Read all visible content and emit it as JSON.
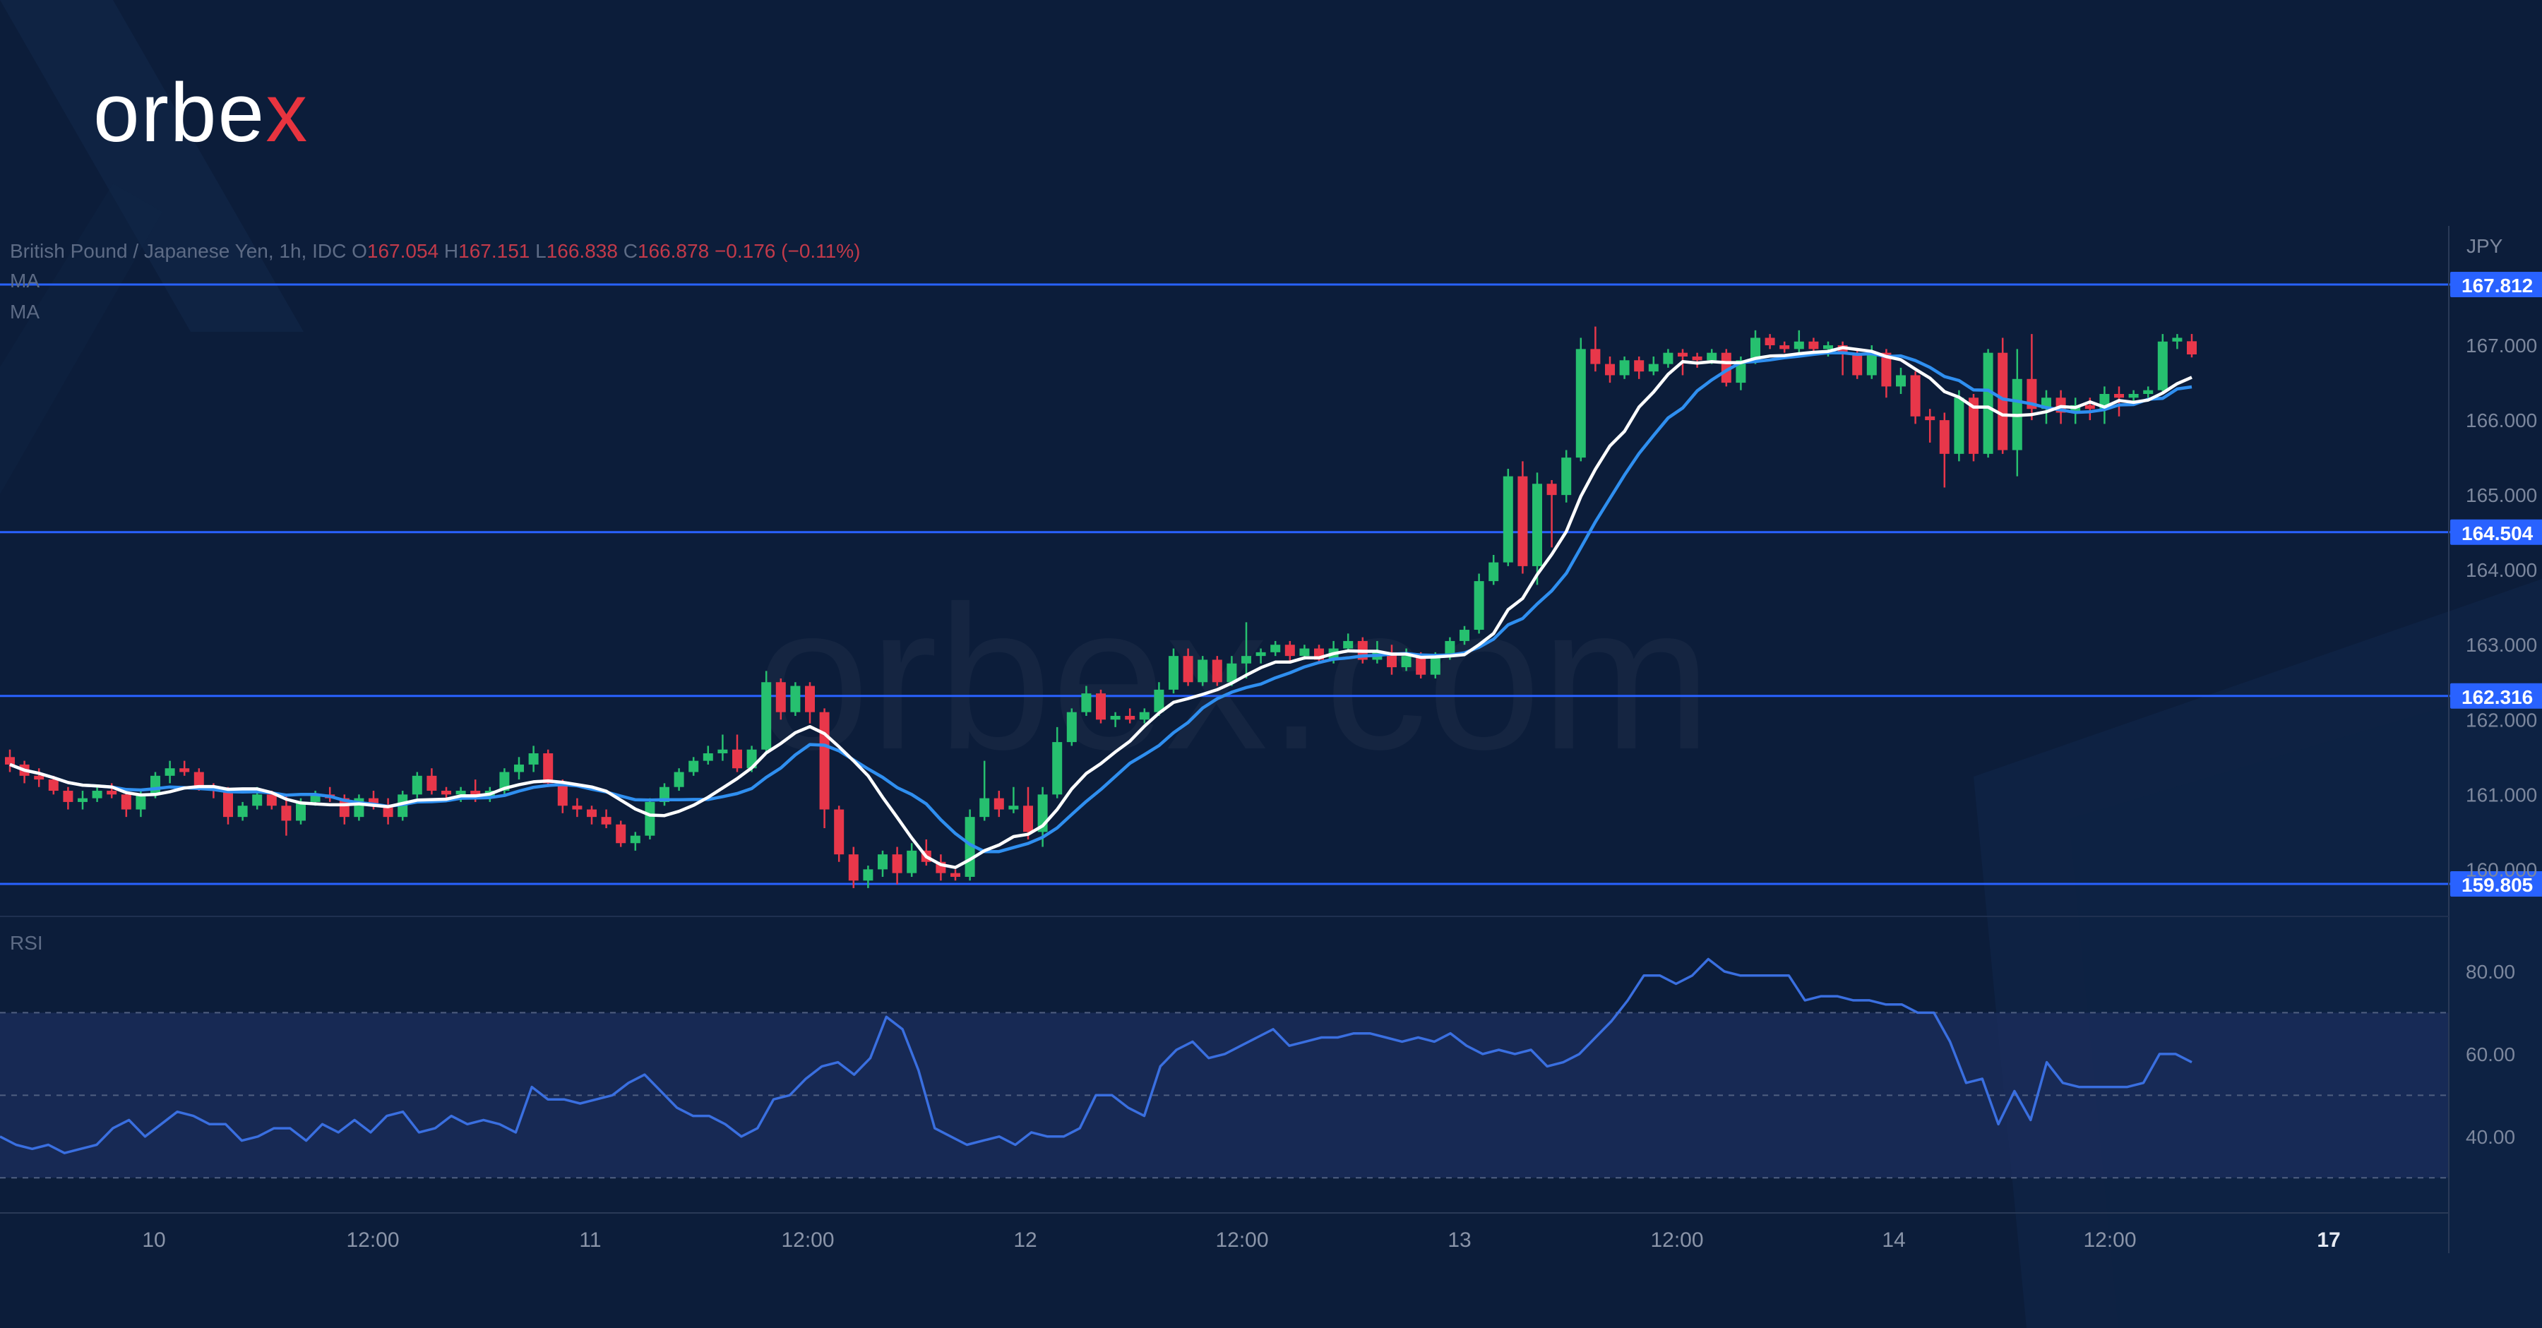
{
  "brand": {
    "name_main": "orbe",
    "name_accent": "x",
    "watermark": "orbex.com"
  },
  "chart_header": {
    "symbol": "British Pound / Japanese Yen, 1h, IDC",
    "open_label": "O",
    "open": "167.054",
    "high_label": "H",
    "high": "167.151",
    "low_label": "L",
    "low": "166.838",
    "close_label": "C",
    "close": "166.878",
    "change": "−0.176 (−0.11%)",
    "ma_labels": [
      "MA",
      "MA"
    ],
    "rsi_label": "RSI"
  },
  "colors": {
    "background": "#0c1d3a",
    "up": "#26c06f",
    "down": "#e8374a",
    "ma_fast": "#ffffff",
    "ma_slow": "#2f8ff0",
    "level_line": "#2962ff",
    "rsi_line": "#3a6fe0",
    "rsi_band": "#1a2c59"
  },
  "chart_data": {
    "type": "candlestick",
    "currency_label": "JPY",
    "ylim": [
      159.4,
      168.5
    ],
    "price_ticks": [
      "167.000",
      "166.000",
      "165.000",
      "164.000",
      "163.000",
      "162.000",
      "161.000",
      "160.000"
    ],
    "levels": [
      "167.812",
      "164.504",
      "162.316",
      "159.805"
    ],
    "x_ticks": [
      "10",
      "12:00",
      "11",
      "12:00",
      "12",
      "12:00",
      "13",
      "12:00",
      "14",
      "12:00",
      "17"
    ],
    "bold_x_tick": "17",
    "candles": [
      [
        161.5,
        161.6,
        161.3,
        161.4
      ],
      [
        161.4,
        161.45,
        161.15,
        161.25
      ],
      [
        161.25,
        161.35,
        161.1,
        161.2
      ],
      [
        161.2,
        161.25,
        161.0,
        161.05
      ],
      [
        161.05,
        161.1,
        160.8,
        160.9
      ],
      [
        160.9,
        161.05,
        160.8,
        160.95
      ],
      [
        160.95,
        161.1,
        160.9,
        161.05
      ],
      [
        161.05,
        161.15,
        160.95,
        161.0
      ],
      [
        161.0,
        161.05,
        160.7,
        160.8
      ],
      [
        160.8,
        161.05,
        160.7,
        161.0
      ],
      [
        161.0,
        161.3,
        160.95,
        161.25
      ],
      [
        161.25,
        161.45,
        161.15,
        161.35
      ],
      [
        161.35,
        161.45,
        161.25,
        161.3
      ],
      [
        161.3,
        161.35,
        161.05,
        161.1
      ],
      [
        161.1,
        161.15,
        160.95,
        161.05
      ],
      [
        161.05,
        161.1,
        160.6,
        160.7
      ],
      [
        160.7,
        160.9,
        160.65,
        160.85
      ],
      [
        160.85,
        161.1,
        160.8,
        161.0
      ],
      [
        161.0,
        161.05,
        160.8,
        160.85
      ],
      [
        160.85,
        161.0,
        160.45,
        160.65
      ],
      [
        160.65,
        160.95,
        160.6,
        160.9
      ],
      [
        160.9,
        161.05,
        160.85,
        161.0
      ],
      [
        161.0,
        161.1,
        160.9,
        160.95
      ],
      [
        160.95,
        161.0,
        160.6,
        160.7
      ],
      [
        160.7,
        161.0,
        160.65,
        160.95
      ],
      [
        160.95,
        161.05,
        160.8,
        160.85
      ],
      [
        160.85,
        160.95,
        160.6,
        160.7
      ],
      [
        160.7,
        161.05,
        160.65,
        161.0
      ],
      [
        161.0,
        161.3,
        160.95,
        161.25
      ],
      [
        161.25,
        161.35,
        161.0,
        161.05
      ],
      [
        161.05,
        161.1,
        160.95,
        161.0
      ],
      [
        161.0,
        161.1,
        160.9,
        161.05
      ],
      [
        161.05,
        161.2,
        160.9,
        160.95
      ],
      [
        160.95,
        161.1,
        160.9,
        161.05
      ],
      [
        161.05,
        161.35,
        161.0,
        161.3
      ],
      [
        161.3,
        161.5,
        161.2,
        161.4
      ],
      [
        161.4,
        161.65,
        161.3,
        161.55
      ],
      [
        161.55,
        161.6,
        161.1,
        161.15
      ],
      [
        161.15,
        161.2,
        160.75,
        160.85
      ],
      [
        160.85,
        160.95,
        160.7,
        160.8
      ],
      [
        160.8,
        160.85,
        160.6,
        160.7
      ],
      [
        160.7,
        160.8,
        160.55,
        160.6
      ],
      [
        160.6,
        160.65,
        160.3,
        160.35
      ],
      [
        160.35,
        160.5,
        160.25,
        160.45
      ],
      [
        160.45,
        160.95,
        160.4,
        160.9
      ],
      [
        160.9,
        161.15,
        160.85,
        161.1
      ],
      [
        161.1,
        161.35,
        161.05,
        161.3
      ],
      [
        161.3,
        161.5,
        161.25,
        161.45
      ],
      [
        161.45,
        161.65,
        161.4,
        161.55
      ],
      [
        161.55,
        161.8,
        161.45,
        161.6
      ],
      [
        161.6,
        161.8,
        161.3,
        161.35
      ],
      [
        161.35,
        161.65,
        161.3,
        161.6
      ],
      [
        161.6,
        162.65,
        161.55,
        162.5
      ],
      [
        162.5,
        162.55,
        162.0,
        162.1
      ],
      [
        162.1,
        162.5,
        162.05,
        162.45
      ],
      [
        162.45,
        162.5,
        161.95,
        162.1
      ],
      [
        162.1,
        162.15,
        160.55,
        160.8
      ],
      [
        160.8,
        160.85,
        160.1,
        160.2
      ],
      [
        160.2,
        160.3,
        159.75,
        159.85
      ],
      [
        159.85,
        160.05,
        159.75,
        160.0
      ],
      [
        160.0,
        160.25,
        159.9,
        160.2
      ],
      [
        160.2,
        160.3,
        159.8,
        159.95
      ],
      [
        159.95,
        160.35,
        159.9,
        160.25
      ],
      [
        160.25,
        160.4,
        160.05,
        160.1
      ],
      [
        160.1,
        160.2,
        159.85,
        159.95
      ],
      [
        159.95,
        160.0,
        159.85,
        159.9
      ],
      [
        159.9,
        160.8,
        159.85,
        160.7
      ],
      [
        160.7,
        161.45,
        160.65,
        160.95
      ],
      [
        160.95,
        161.05,
        160.7,
        160.8
      ],
      [
        160.8,
        161.1,
        160.75,
        160.85
      ],
      [
        160.85,
        161.1,
        160.4,
        160.5
      ],
      [
        160.5,
        161.1,
        160.3,
        161.0
      ],
      [
        161.0,
        161.9,
        160.95,
        161.7
      ],
      [
        161.7,
        162.15,
        161.65,
        162.1
      ],
      [
        162.1,
        162.45,
        162.05,
        162.35
      ],
      [
        162.35,
        162.4,
        161.95,
        162.0
      ],
      [
        162.0,
        162.1,
        161.9,
        162.05
      ],
      [
        162.05,
        162.15,
        161.95,
        162.0
      ],
      [
        162.0,
        162.15,
        161.95,
        162.1
      ],
      [
        162.1,
        162.5,
        162.05,
        162.4
      ],
      [
        162.4,
        162.95,
        162.35,
        162.85
      ],
      [
        162.85,
        162.95,
        162.45,
        162.5
      ],
      [
        162.5,
        162.85,
        162.45,
        162.8
      ],
      [
        162.8,
        162.85,
        162.45,
        162.5
      ],
      [
        162.5,
        162.85,
        162.45,
        162.75
      ],
      [
        162.75,
        163.3,
        162.55,
        162.85
      ],
      [
        162.85,
        162.95,
        162.75,
        162.9
      ],
      [
        162.9,
        163.05,
        162.85,
        163.0
      ],
      [
        163.0,
        163.05,
        162.75,
        162.85
      ],
      [
        162.85,
        163.0,
        162.8,
        162.95
      ],
      [
        162.95,
        163.0,
        162.75,
        162.8
      ],
      [
        162.8,
        163.05,
        162.75,
        162.95
      ],
      [
        162.95,
        163.15,
        162.9,
        163.05
      ],
      [
        163.05,
        163.1,
        162.75,
        162.8
      ],
      [
        162.8,
        163.05,
        162.75,
        162.9
      ],
      [
        162.9,
        163.0,
        162.6,
        162.7
      ],
      [
        162.7,
        162.95,
        162.65,
        162.85
      ],
      [
        162.85,
        162.9,
        162.55,
        162.6
      ],
      [
        162.6,
        162.9,
        162.55,
        162.85
      ],
      [
        162.85,
        163.1,
        162.8,
        163.05
      ],
      [
        163.05,
        163.25,
        163.0,
        163.2
      ],
      [
        163.2,
        163.95,
        163.15,
        163.85
      ],
      [
        163.85,
        164.2,
        163.8,
        164.1
      ],
      [
        164.1,
        165.35,
        164.05,
        165.25
      ],
      [
        165.25,
        165.45,
        163.95,
        164.05
      ],
      [
        164.05,
        165.3,
        163.8,
        165.15
      ],
      [
        165.15,
        165.2,
        164.3,
        165.0
      ],
      [
        165.0,
        165.6,
        164.9,
        165.5
      ],
      [
        165.5,
        167.1,
        165.45,
        166.95
      ],
      [
        166.95,
        167.25,
        166.65,
        166.75
      ],
      [
        166.75,
        166.85,
        166.5,
        166.6
      ],
      [
        166.6,
        166.85,
        166.55,
        166.8
      ],
      [
        166.8,
        166.85,
        166.55,
        166.65
      ],
      [
        166.65,
        166.85,
        166.6,
        166.75
      ],
      [
        166.75,
        166.95,
        166.7,
        166.9
      ],
      [
        166.9,
        166.95,
        166.6,
        166.85
      ],
      [
        166.85,
        166.9,
        166.7,
        166.8
      ],
      [
        166.8,
        166.95,
        166.75,
        166.9
      ],
      [
        166.9,
        166.95,
        166.45,
        166.5
      ],
      [
        166.5,
        166.85,
        166.4,
        166.8
      ],
      [
        166.8,
        167.2,
        166.75,
        167.1
      ],
      [
        167.1,
        167.15,
        166.95,
        167.0
      ],
      [
        167.0,
        167.05,
        166.9,
        166.95
      ],
      [
        166.95,
        167.2,
        166.9,
        167.05
      ],
      [
        167.05,
        167.1,
        166.9,
        166.95
      ],
      [
        166.95,
        167.05,
        166.85,
        167.0
      ],
      [
        167.0,
        167.05,
        166.6,
        166.9
      ],
      [
        166.9,
        166.95,
        166.55,
        166.6
      ],
      [
        166.6,
        167.0,
        166.55,
        166.9
      ],
      [
        166.9,
        166.95,
        166.3,
        166.45
      ],
      [
        166.45,
        166.7,
        166.35,
        166.6
      ],
      [
        166.6,
        166.65,
        165.95,
        166.05
      ],
      [
        166.05,
        166.15,
        165.7,
        166.0
      ],
      [
        166.0,
        166.1,
        165.1,
        165.55
      ],
      [
        165.55,
        166.4,
        165.45,
        166.3
      ],
      [
        166.3,
        166.35,
        165.45,
        165.55
      ],
      [
        165.55,
        166.95,
        165.5,
        166.9
      ],
      [
        166.9,
        167.1,
        165.55,
        165.6
      ],
      [
        165.6,
        166.95,
        165.25,
        166.55
      ],
      [
        166.55,
        167.15,
        166.0,
        166.15
      ],
      [
        166.15,
        166.4,
        165.95,
        166.3
      ],
      [
        166.3,
        166.4,
        165.95,
        166.1
      ],
      [
        166.1,
        166.3,
        165.95,
        166.2
      ],
      [
        166.2,
        166.3,
        166.0,
        166.15
      ],
      [
        166.15,
        166.45,
        165.95,
        166.35
      ],
      [
        166.35,
        166.45,
        166.05,
        166.3
      ],
      [
        166.3,
        166.4,
        166.25,
        166.35
      ],
      [
        166.35,
        166.45,
        166.3,
        166.4
      ],
      [
        166.4,
        167.15,
        166.35,
        167.05
      ],
      [
        167.05,
        167.15,
        166.95,
        167.1
      ],
      [
        167.054,
        167.151,
        166.838,
        166.878
      ]
    ],
    "rsi": {
      "ticks": [
        "80.00",
        "60.00",
        "40.00"
      ],
      "band": [
        30,
        70
      ],
      "midline": 50,
      "ylim": [
        22,
        93
      ],
      "values": [
        40,
        38,
        37,
        38,
        36,
        37,
        38,
        42,
        44,
        40,
        43,
        46,
        45,
        43,
        43,
        39,
        40,
        42,
        42,
        39,
        43,
        41,
        44,
        41,
        45,
        46,
        41,
        42,
        45,
        43,
        44,
        43,
        41,
        52,
        49,
        49,
        48,
        49,
        50,
        53,
        55,
        51,
        47,
        45,
        45,
        43,
        40,
        42,
        49,
        50,
        54,
        57,
        58,
        55,
        59,
        69,
        66,
        56,
        42,
        40,
        38,
        39,
        40,
        38,
        41,
        40,
        40,
        42,
        50,
        50,
        47,
        45,
        57,
        61,
        63,
        59,
        60,
        62,
        64,
        66,
        62,
        63,
        64,
        64,
        65,
        65,
        64,
        63,
        64,
        63,
        65,
        62,
        60,
        61,
        60,
        61,
        57,
        58,
        60,
        64,
        68,
        73,
        79,
        79,
        77,
        79,
        83,
        80,
        79,
        79,
        79,
        79,
        73,
        74,
        74,
        73,
        73,
        72,
        72,
        70,
        70,
        63,
        53,
        54,
        43,
        51,
        44,
        58,
        53,
        52,
        52,
        52,
        52,
        53,
        60,
        60,
        58
      ]
    }
  }
}
